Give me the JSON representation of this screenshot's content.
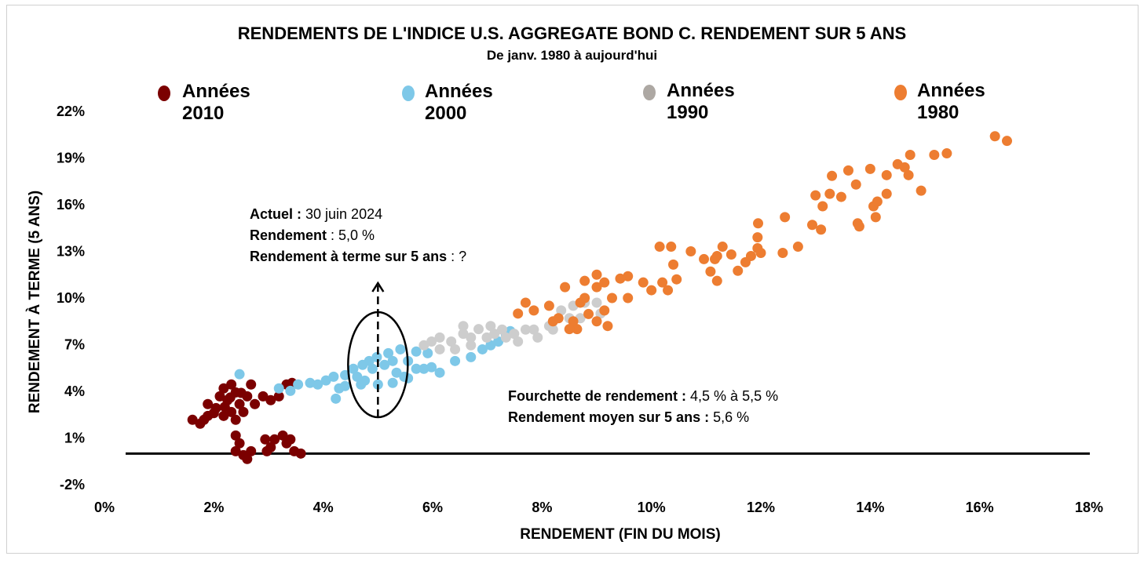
{
  "chart_data": {
    "type": "scatter",
    "title": "RENDEMENTS DE L'INDICE U.S. AGGREGATE BOND C. RENDEMENT SUR 5 ANS",
    "subtitle": "De janv. 1980 à aujourd'hui",
    "xlabel": "RENDEMENT (FIN DU MOIS)",
    "ylabel": "RENDEMENT À TERME (5 ANS)",
    "xlim": [
      0,
      18
    ],
    "ylim": [
      -2,
      22
    ],
    "xticks": [
      "0%",
      "2%",
      "4%",
      "6%",
      "8%",
      "10%",
      "12%",
      "14%",
      "16%",
      "18%"
    ],
    "yticks": [
      "-2%",
      "1%",
      "4%",
      "7%",
      "10%",
      "13%",
      "16%",
      "19%",
      "22%"
    ],
    "grid": false,
    "legend_position": "top",
    "reference_line_y": 0,
    "series": [
      {
        "name": "Années 2010",
        "legend_line1": "Années",
        "legend_line2": "2010",
        "color": "#7B0000",
        "legend_color": "#7B0000",
        "points": [
          [
            1.61,
            2.17
          ],
          [
            1.75,
            1.92
          ],
          [
            1.89,
            2.42
          ],
          [
            1.89,
            3.18
          ],
          [
            2.04,
            2.92
          ],
          [
            2.11,
            3.68
          ],
          [
            2.18,
            4.19
          ],
          [
            2.25,
            3.43
          ],
          [
            2.32,
            2.67
          ],
          [
            2.32,
            4.44
          ],
          [
            2.4,
            3.93
          ],
          [
            2.47,
            3.18
          ],
          [
            2.54,
            2.67
          ],
          [
            2.4,
            2.17
          ],
          [
            2.61,
            3.68
          ],
          [
            2.68,
            4.44
          ],
          [
            2.75,
            3.18
          ],
          [
            2.9,
            3.68
          ],
          [
            3.04,
            3.43
          ],
          [
            3.19,
            3.68
          ],
          [
            3.33,
            4.44
          ],
          [
            3.43,
            4.54
          ],
          [
            2.18,
            2.42
          ],
          [
            1.82,
            2.17
          ],
          [
            2.2,
            3.0
          ],
          [
            2.3,
            3.6
          ],
          [
            2.5,
            3.9
          ],
          [
            2.0,
            2.6
          ],
          [
            2.4,
            1.16
          ],
          [
            2.47,
            0.66
          ],
          [
            2.54,
            -0.1
          ],
          [
            2.61,
            -0.35
          ],
          [
            2.68,
            0.15
          ],
          [
            2.4,
            0.15
          ],
          [
            2.94,
            0.91
          ],
          [
            3.04,
            0.4
          ],
          [
            3.11,
            0.91
          ],
          [
            3.26,
            1.16
          ],
          [
            3.33,
            0.66
          ],
          [
            3.47,
            0.15
          ],
          [
            3.59,
            0.0
          ],
          [
            3.4,
            0.91
          ],
          [
            2.97,
            0.15
          ]
        ]
      },
      {
        "name": "Années 2000",
        "legend_line1": "Années",
        "legend_line2": "2000",
        "color": "#7EC8E8",
        "legend_color": "#7EC8E8",
        "points": [
          [
            2.47,
            5.1
          ],
          [
            3.19,
            4.19
          ],
          [
            3.4,
            4.03
          ],
          [
            3.54,
            4.44
          ],
          [
            3.76,
            4.54
          ],
          [
            3.9,
            4.44
          ],
          [
            4.05,
            4.7
          ],
          [
            4.19,
            4.94
          ],
          [
            4.23,
            3.53
          ],
          [
            4.29,
            4.19
          ],
          [
            4.4,
            5.04
          ],
          [
            4.55,
            5.45
          ],
          [
            4.62,
            4.94
          ],
          [
            4.69,
            4.44
          ],
          [
            4.72,
            5.7
          ],
          [
            4.84,
            5.95
          ],
          [
            4.9,
            5.45
          ],
          [
            4.98,
            6.2
          ],
          [
            5.0,
            4.44
          ],
          [
            5.12,
            5.7
          ],
          [
            5.19,
            6.45
          ],
          [
            5.27,
            5.95
          ],
          [
            5.34,
            5.2
          ],
          [
            5.41,
            6.7
          ],
          [
            5.48,
            4.94
          ],
          [
            5.55,
            5.95
          ],
          [
            5.7,
            5.45
          ],
          [
            5.84,
            5.45
          ],
          [
            5.98,
            5.55
          ],
          [
            6.13,
            5.2
          ],
          [
            6.41,
            5.95
          ],
          [
            6.7,
            6.2
          ],
          [
            6.91,
            6.7
          ],
          [
            7.06,
            6.96
          ],
          [
            7.2,
            7.2
          ],
          [
            7.34,
            7.56
          ],
          [
            7.42,
            7.87
          ],
          [
            5.7,
            6.56
          ],
          [
            5.91,
            6.45
          ],
          [
            4.76,
            4.69
          ],
          [
            4.4,
            4.34
          ],
          [
            5.27,
            4.54
          ],
          [
            5.55,
            4.84
          ]
        ]
      },
      {
        "name": "Années 1990",
        "legend_line1": "Années",
        "legend_line2": "1990",
        "color": "#CDCDCD",
        "legend_color": "#ADA8A3",
        "points": [
          [
            5.84,
            6.96
          ],
          [
            6.13,
            7.46
          ],
          [
            6.34,
            7.2
          ],
          [
            6.56,
            7.7
          ],
          [
            6.7,
            7.46
          ],
          [
            6.84,
            8.0
          ],
          [
            7.06,
            8.2
          ],
          [
            7.27,
            7.97
          ],
          [
            7.49,
            7.7
          ],
          [
            7.7,
            7.97
          ],
          [
            7.92,
            7.46
          ],
          [
            8.13,
            8.2
          ],
          [
            8.35,
            9.2
          ],
          [
            8.57,
            9.5
          ],
          [
            8.78,
            9.7
          ],
          [
            9.0,
            9.7
          ],
          [
            8.5,
            8.7
          ],
          [
            8.2,
            7.97
          ],
          [
            6.99,
            7.46
          ],
          [
            6.7,
            6.96
          ],
          [
            6.13,
            6.7
          ],
          [
            6.41,
            6.7
          ],
          [
            7.34,
            7.46
          ],
          [
            7.56,
            7.2
          ],
          [
            7.85,
            7.97
          ],
          [
            9.07,
            9.0
          ],
          [
            8.7,
            8.7
          ],
          [
            7.13,
            7.7
          ],
          [
            6.56,
            8.2
          ],
          [
            5.98,
            7.2
          ]
        ]
      },
      {
        "name": "Années 1980",
        "legend_line1": "Années",
        "legend_line2": "1980",
        "color": "#ED7D31",
        "legend_color": "#ED7D31",
        "points": [
          [
            16.28,
            20.4
          ],
          [
            16.5,
            20.1
          ],
          [
            15.17,
            19.2
          ],
          [
            15.4,
            19.3
          ],
          [
            14.73,
            19.2
          ],
          [
            14.5,
            18.6
          ],
          [
            14.63,
            18.4
          ],
          [
            14.7,
            17.9
          ],
          [
            14.93,
            16.9
          ],
          [
            14.0,
            18.3
          ],
          [
            13.6,
            18.2
          ],
          [
            14.3,
            17.9
          ],
          [
            13.3,
            17.85
          ],
          [
            13.47,
            16.5
          ],
          [
            13.74,
            17.3
          ],
          [
            13.0,
            16.6
          ],
          [
            13.26,
            16.7
          ],
          [
            13.13,
            15.9
          ],
          [
            14.06,
            15.9
          ],
          [
            14.13,
            16.2
          ],
          [
            14.1,
            15.2
          ],
          [
            14.3,
            16.7
          ],
          [
            13.77,
            14.8
          ],
          [
            13.8,
            14.6
          ],
          [
            12.94,
            14.7
          ],
          [
            13.1,
            14.4
          ],
          [
            12.44,
            15.2
          ],
          [
            11.95,
            14.8
          ],
          [
            11.94,
            13.9
          ],
          [
            11.94,
            13.2
          ],
          [
            12.68,
            13.3
          ],
          [
            12.4,
            12.9
          ],
          [
            12.0,
            12.9
          ],
          [
            11.82,
            12.7
          ],
          [
            11.72,
            12.3
          ],
          [
            11.46,
            12.8
          ],
          [
            11.58,
            11.75
          ],
          [
            11.2,
            12.7
          ],
          [
            11.3,
            13.3
          ],
          [
            11.16,
            12.5
          ],
          [
            11.2,
            11.1
          ],
          [
            10.96,
            12.5
          ],
          [
            10.72,
            13.0
          ],
          [
            11.08,
            11.7
          ],
          [
            10.4,
            12.15
          ],
          [
            10.46,
            11.2
          ],
          [
            10.15,
            13.3
          ],
          [
            10.36,
            13.3
          ],
          [
            10.2,
            11.0
          ],
          [
            10.3,
            10.5
          ],
          [
            10.0,
            10.5
          ],
          [
            9.85,
            11.0
          ],
          [
            9.57,
            11.4
          ],
          [
            9.43,
            11.25
          ],
          [
            9.0,
            11.5
          ],
          [
            9.14,
            11.0
          ],
          [
            9.28,
            10.0
          ],
          [
            9.57,
            10.0
          ],
          [
            9.0,
            10.7
          ],
          [
            8.78,
            11.1
          ],
          [
            8.42,
            10.7
          ],
          [
            8.7,
            9.7
          ],
          [
            8.85,
            8.97
          ],
          [
            9.0,
            8.5
          ],
          [
            9.14,
            9.2
          ],
          [
            8.57,
            8.5
          ],
          [
            8.64,
            8.0
          ],
          [
            7.7,
            9.7
          ],
          [
            7.85,
            9.2
          ],
          [
            7.56,
            9.0
          ],
          [
            8.13,
            9.5
          ],
          [
            8.3,
            8.7
          ],
          [
            8.78,
            10.0
          ],
          [
            8.5,
            8.0
          ],
          [
            8.2,
            8.5
          ],
          [
            9.2,
            8.2
          ]
        ]
      }
    ],
    "annotations": {
      "current": {
        "line1_bold": "Actuel :",
        "line1_text": " 30 juin 2024",
        "line2_bold": "Rendement",
        "line2_text": " : 5,0 %",
        "line3_bold": "Rendement à terme sur 5 ans",
        "line3_text": " : ?",
        "marker_x": 5.0
      },
      "range": {
        "line1_bold": "Fourchette de rendement :",
        "line1_text": " 4,5 % à 5,5 %",
        "line2_bold": "Rendement moyen sur 5 ans :",
        "line2_text": " 5,6 %"
      }
    }
  }
}
